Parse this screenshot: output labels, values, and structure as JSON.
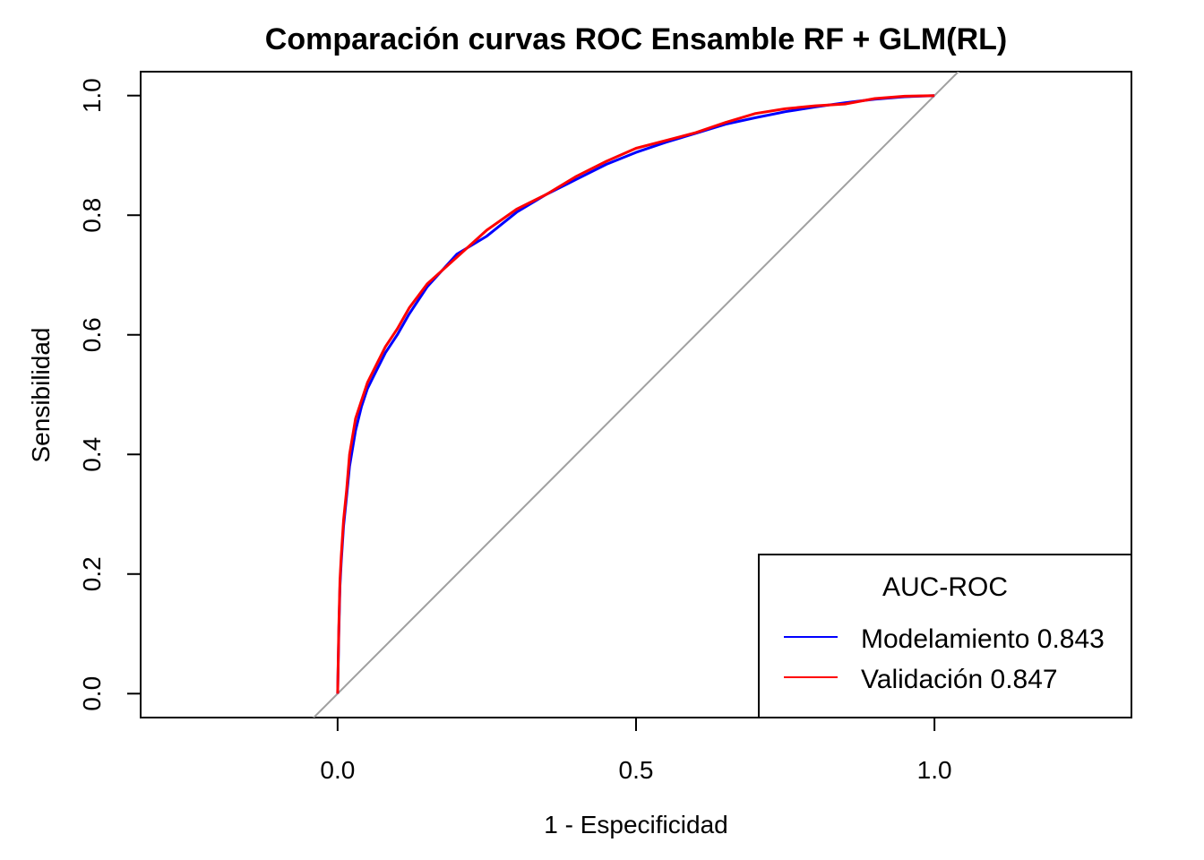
{
  "chart_data": {
    "type": "line",
    "title": "Comparación curvas ROC Ensamble RF + GLM(RL)",
    "xlabel": "1 - Especificidad",
    "ylabel": "Sensibilidad",
    "xlim": [
      -0.33,
      1.33
    ],
    "ylim": [
      -0.04,
      1.04
    ],
    "xticks": [
      0.0,
      0.5,
      1.0
    ],
    "xtick_labels": [
      "0.0",
      "0.5",
      "1.0"
    ],
    "yticks": [
      0.0,
      0.2,
      0.4,
      0.6,
      0.8,
      1.0
    ],
    "ytick_labels": [
      "0.0",
      "0.2",
      "0.4",
      "0.6",
      "0.8",
      "1.0"
    ],
    "grid": false,
    "reference_line": {
      "description": "diagonal",
      "color": "#A0A0A0"
    },
    "legend": {
      "title": "AUC-ROC",
      "position": "bottom-right",
      "entries": [
        {
          "label": "Modelamiento 0.843",
          "color": "#0000FF"
        },
        {
          "label": "Validación 0.847",
          "color": "#FF0000"
        }
      ]
    },
    "series": [
      {
        "name": "Modelamiento 0.843",
        "color": "#0000FF",
        "x": [
          0,
          0.002,
          0.004,
          0.006,
          0.01,
          0.015,
          0.02,
          0.03,
          0.04,
          0.05,
          0.06,
          0.08,
          0.1,
          0.12,
          0.15,
          0.2,
          0.25,
          0.3,
          0.35,
          0.4,
          0.45,
          0.5,
          0.55,
          0.6,
          0.65,
          0.7,
          0.75,
          0.8,
          0.85,
          0.9,
          0.95,
          1.0
        ],
        "y": [
          0,
          0.1,
          0.18,
          0.22,
          0.28,
          0.33,
          0.38,
          0.44,
          0.48,
          0.51,
          0.53,
          0.57,
          0.6,
          0.635,
          0.68,
          0.735,
          0.765,
          0.805,
          0.835,
          0.86,
          0.885,
          0.905,
          0.922,
          0.937,
          0.952,
          0.963,
          0.973,
          0.981,
          0.988,
          0.994,
          0.998,
          1.0
        ]
      },
      {
        "name": "Validación 0.847",
        "color": "#FF0000",
        "x": [
          0,
          0.002,
          0.004,
          0.006,
          0.01,
          0.015,
          0.02,
          0.03,
          0.04,
          0.05,
          0.06,
          0.08,
          0.1,
          0.12,
          0.15,
          0.2,
          0.25,
          0.3,
          0.35,
          0.4,
          0.45,
          0.5,
          0.55,
          0.6,
          0.65,
          0.7,
          0.75,
          0.8,
          0.85,
          0.9,
          0.95,
          1.0
        ],
        "y": [
          0,
          0.11,
          0.19,
          0.23,
          0.29,
          0.34,
          0.4,
          0.46,
          0.49,
          0.52,
          0.54,
          0.58,
          0.61,
          0.645,
          0.685,
          0.73,
          0.775,
          0.81,
          0.835,
          0.865,
          0.89,
          0.912,
          0.925,
          0.938,
          0.955,
          0.97,
          0.978,
          0.983,
          0.986,
          0.995,
          0.999,
          1.0
        ]
      }
    ]
  }
}
